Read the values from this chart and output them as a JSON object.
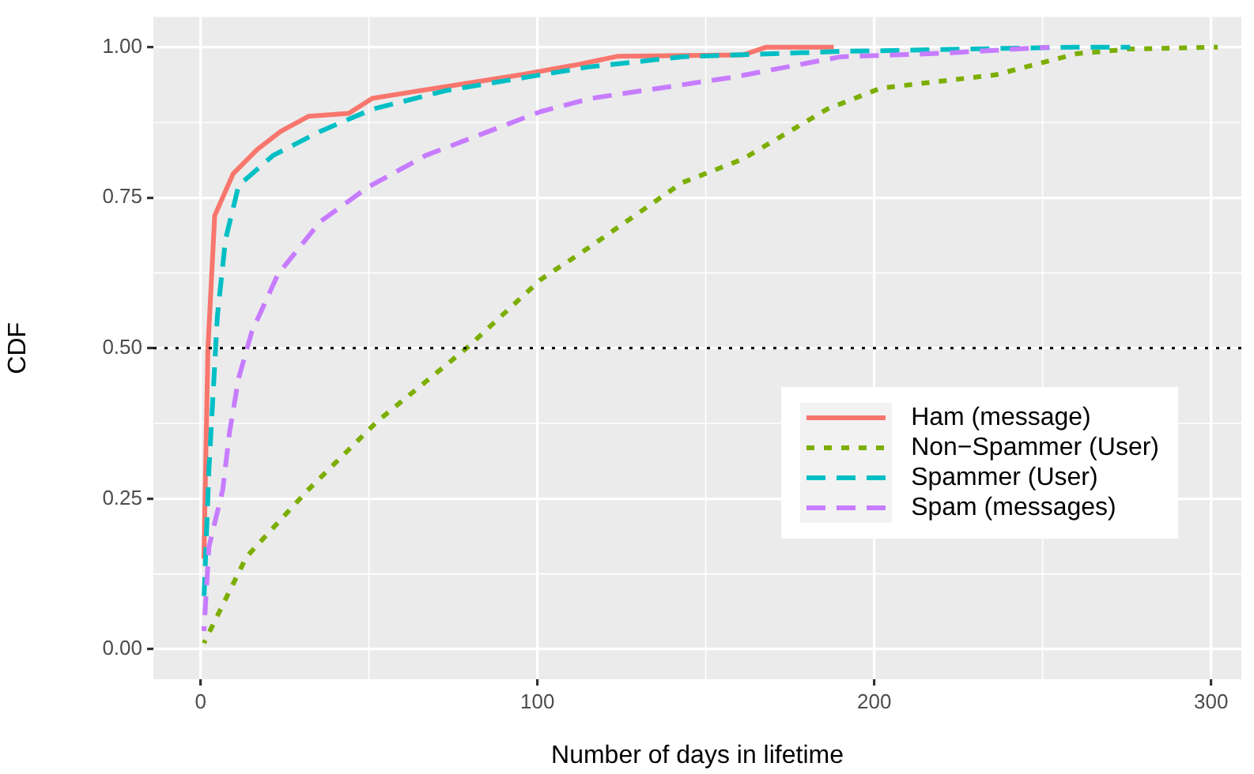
{
  "chart_data": {
    "type": "line",
    "xlabel": "Number of days in lifetime",
    "ylabel": "CDF",
    "xlim": [
      -14,
      309
    ],
    "ylim": [
      -0.05,
      1.05
    ],
    "xticks": [
      0,
      100,
      200,
      300
    ],
    "yticks": [
      {
        "value": 0,
        "label": "0.00"
      },
      {
        "value": 0.25,
        "label": "0.25"
      },
      {
        "value": 0.5,
        "label": "0.50"
      },
      {
        "value": 0.75,
        "label": "0.75"
      },
      {
        "value": 1,
        "label": "1.00"
      }
    ],
    "grid": true,
    "legend": "bottom right",
    "marker": "none",
    "ref_lines": [
      {
        "axis": "y",
        "value": 0.5,
        "color": "#000000",
        "line_style": "dotted"
      }
    ],
    "series": [
      {
        "name": "Ham (message)",
        "color": "#f8766d",
        "line_style": "solid",
        "x": [
          1,
          1.5,
          2.2,
          4.2,
          9.7,
          16.8,
          23.8,
          32,
          44,
          51,
          79,
          95,
          111,
          124,
          161,
          168,
          188
        ],
        "values": [
          0.15,
          0.3,
          0.5,
          0.72,
          0.79,
          0.83,
          0.86,
          0.885,
          0.89,
          0.915,
          0.94,
          0.954,
          0.97,
          0.985,
          0.987,
          1.0,
          1.0
        ]
      },
      {
        "name": "Non−Spammer (User)",
        "color": "#7cae00",
        "line_style": "dotted",
        "x": [
          1,
          13.6,
          32,
          52.6,
          79,
          101,
          115,
          143,
          161,
          186,
          202,
          236,
          260,
          276,
          302
        ],
        "values": [
          0.01,
          0.153,
          0.265,
          0.379,
          0.5,
          0.614,
          0.666,
          0.775,
          0.814,
          0.897,
          0.932,
          0.954,
          0.989,
          0.997,
          1.0
        ]
      },
      {
        "name": "Spammer (User)",
        "color": "#00bfc4",
        "line_style": "dashed",
        "x": [
          1,
          2.5,
          5,
          7.4,
          11.3,
          21.5,
          35.5,
          51,
          73,
          101,
          115,
          143,
          190,
          259,
          276
        ],
        "values": [
          0.08,
          0.3,
          0.553,
          0.68,
          0.77,
          0.82,
          0.86,
          0.897,
          0.928,
          0.954,
          0.967,
          0.984,
          0.993,
          1.0,
          1.0
        ]
      },
      {
        "name": "Spam (messages)",
        "color": "#c77cff",
        "line_style": "dashed",
        "x": [
          1,
          2.5,
          6.6,
          8.6,
          11.3,
          15.2,
          23,
          35.5,
          49.6,
          66.8,
          101,
          116,
          158,
          190,
          221,
          252
        ],
        "values": [
          0.03,
          0.17,
          0.265,
          0.36,
          0.45,
          0.527,
          0.623,
          0.71,
          0.767,
          0.82,
          0.893,
          0.915,
          0.95,
          0.984,
          0.99,
          1.0
        ]
      }
    ]
  }
}
